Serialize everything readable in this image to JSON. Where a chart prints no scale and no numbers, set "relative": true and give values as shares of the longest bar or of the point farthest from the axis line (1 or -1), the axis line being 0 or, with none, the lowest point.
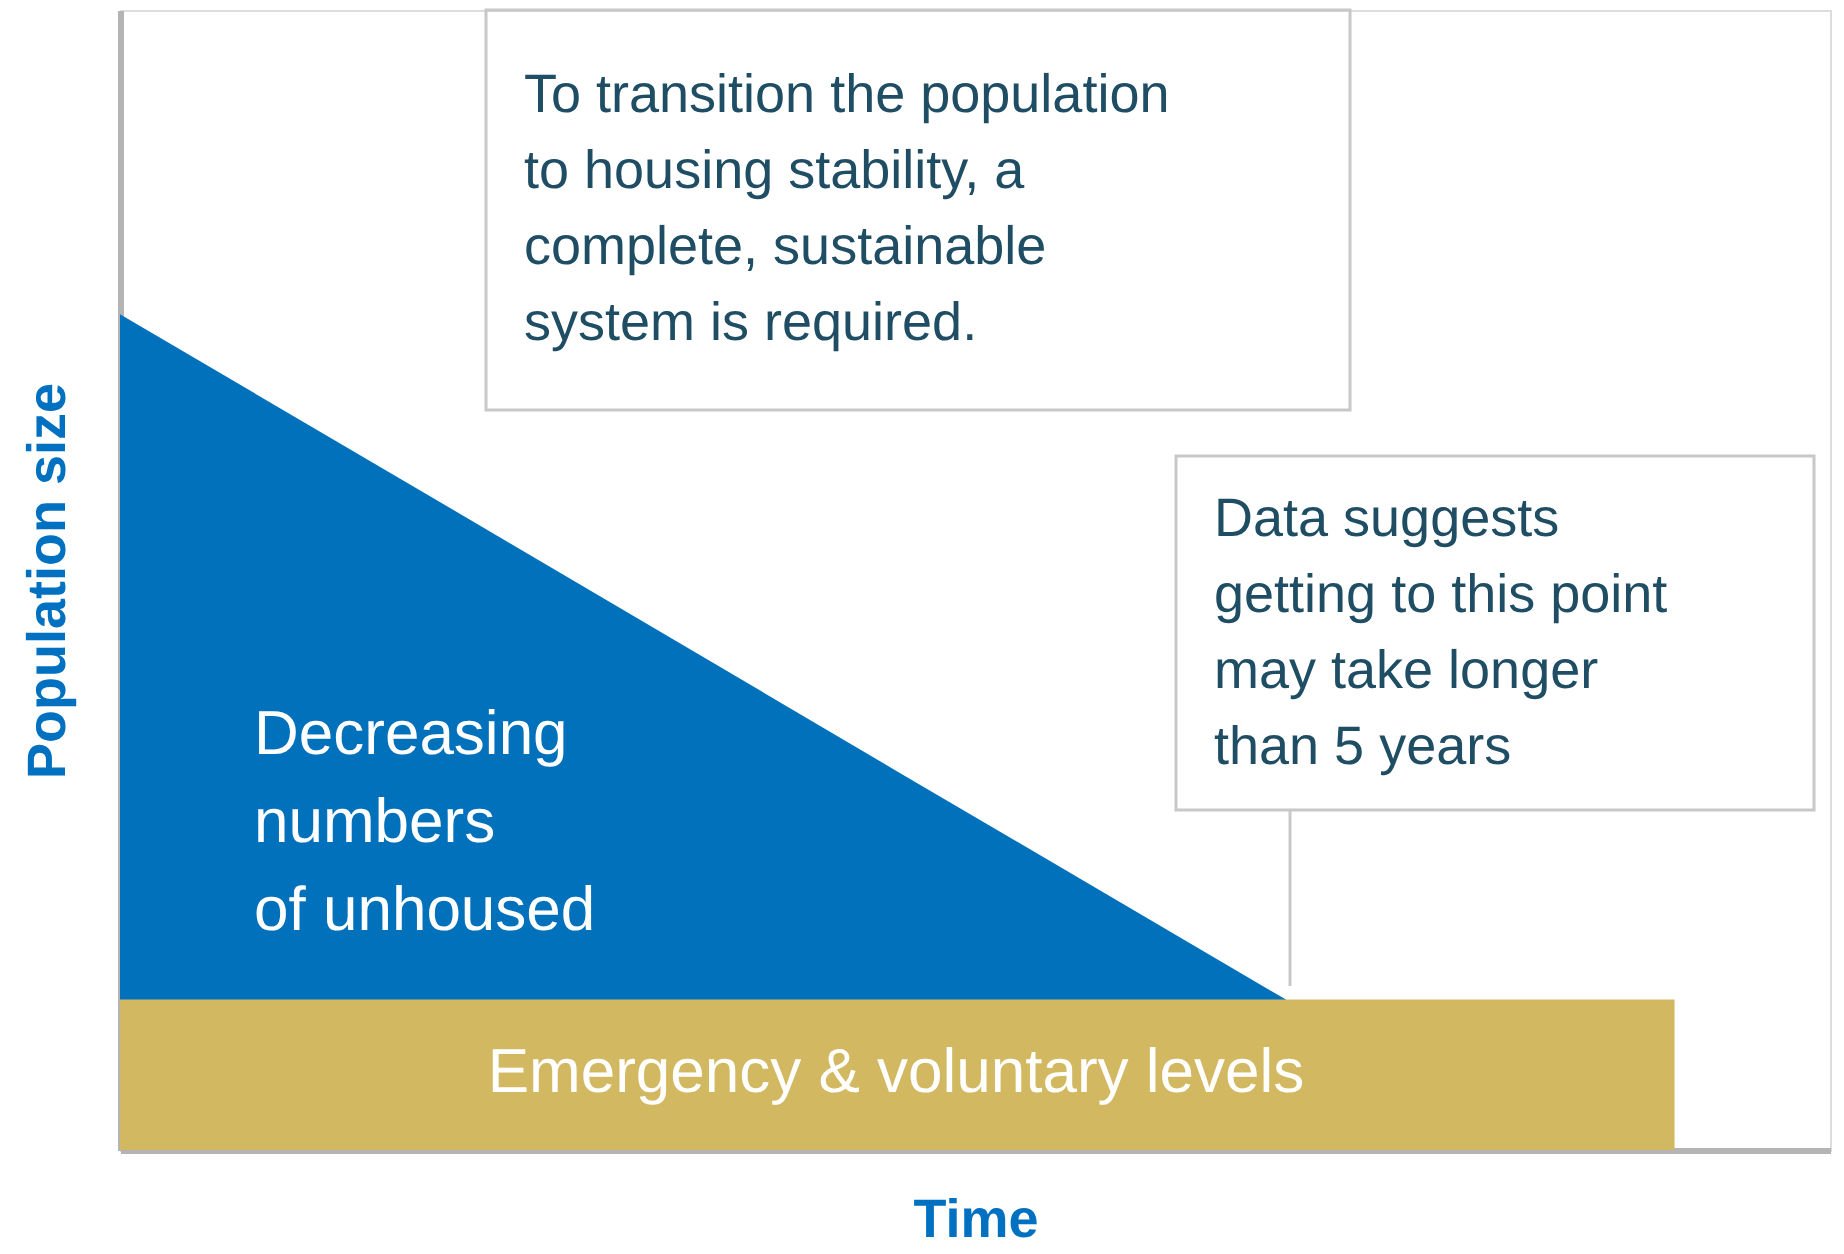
{
  "chart_data": {
    "type": "area",
    "relative": true,
    "xlabel": "Time",
    "ylabel": "Population size",
    "categories": [
      null,
      null,
      null,
      null,
      null
    ],
    "series": [
      {
        "name": "Decreasing\nnumbers\nof unhoused",
        "color": "#0071ba",
        "values": [
          1,
          0.727,
          0.453,
          0.18,
          null
        ]
      },
      {
        "name": "Emergency & voluntary levels",
        "color": "#d2b860",
        "values": [
          0.18,
          0.18,
          0.18,
          0.18,
          0.18
        ]
      }
    ],
    "annotations": [
      "To transition the population\nto housing stability, a\ncomplete, sustainable\nsystem is required.",
      "Data suggests\ngetting to this point\nmay take longer\nthan 5 years"
    ]
  }
}
